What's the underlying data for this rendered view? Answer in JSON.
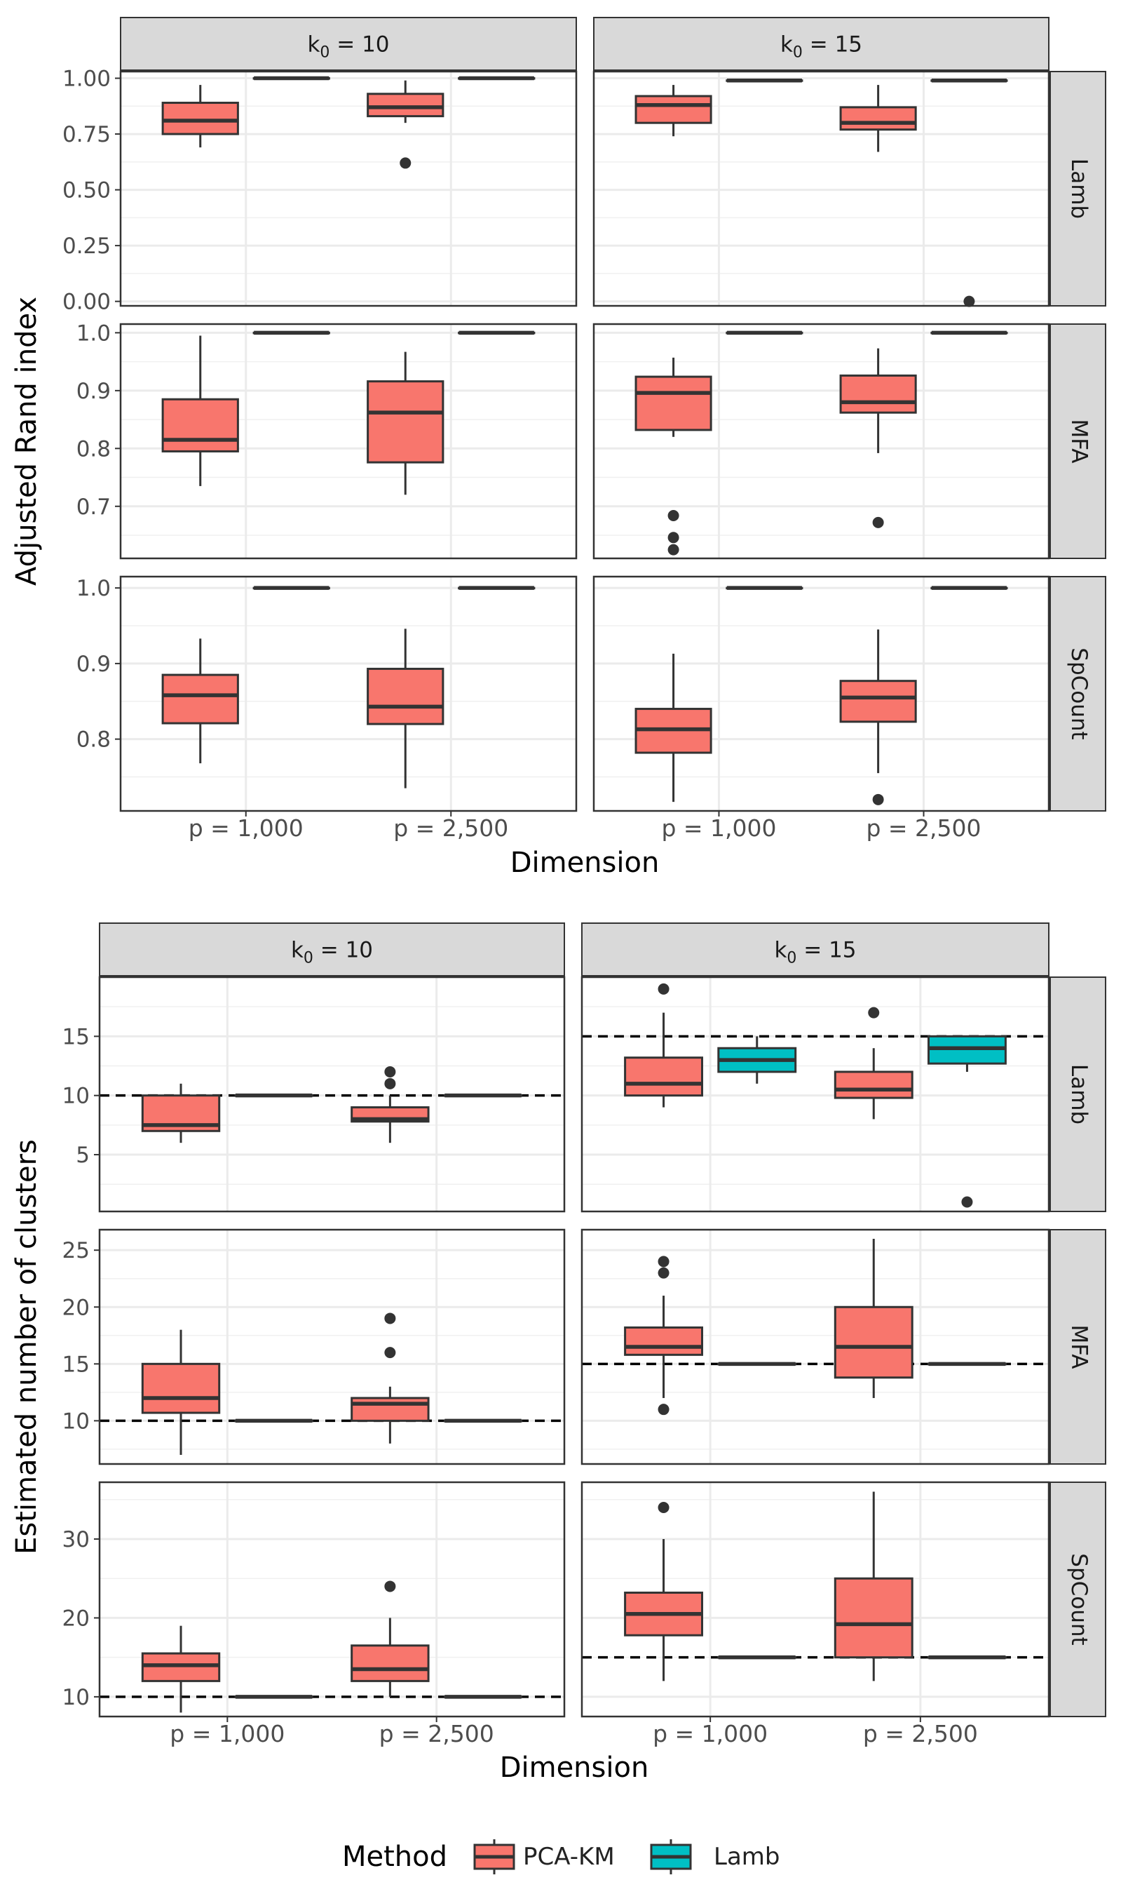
{
  "legend": {
    "title": "Method",
    "items": [
      {
        "label": "PCA-KM",
        "color": "#F8766D"
      },
      {
        "label": "Lamb",
        "color": "#00BFC4"
      }
    ]
  },
  "colors": {
    "PCA-KM": "#F8766D",
    "Lamb": "#00BFC4",
    "strip": "#D9D9D9",
    "box_line": "#333333"
  },
  "chart_data": [
    {
      "type": "boxplot",
      "title": "",
      "ylabel": "Adjusted Rand index",
      "xlabel": "Dimension",
      "categories": [
        "p = 1,000",
        "p = 2,500"
      ],
      "column_strips": [
        {
          "main": "k",
          "sub": "0",
          "rest": " = 10"
        },
        {
          "main": "k",
          "sub": "0",
          "rest": " = 15"
        }
      ],
      "row_strips": [
        "Lamb",
        "MFA",
        "SpCount"
      ],
      "rows": [
        {
          "name": "Lamb",
          "ylim": [
            -0.02,
            1.03
          ],
          "ticks": [
            0,
            0.25,
            0.5,
            0.75,
            1.0
          ],
          "tick_labels": [
            "0.00",
            "0.25",
            "0.50",
            "0.75",
            "1.00"
          ],
          "panels": [
            [
              {
                "method": "PCA-KM",
                "cat": 0,
                "min": 0.69,
                "q1": 0.75,
                "med": 0.81,
                "q3": 0.89,
                "max": 0.97,
                "outliers": []
              },
              {
                "method": "Lamb",
                "cat": 0,
                "min": 1.0,
                "q1": 1.0,
                "med": 1.0,
                "q3": 1.0,
                "max": 1.0,
                "outliers": []
              },
              {
                "method": "PCA-KM",
                "cat": 1,
                "min": 0.8,
                "q1": 0.83,
                "med": 0.87,
                "q3": 0.93,
                "max": 0.99,
                "outliers": [
                  0.62
                ]
              },
              {
                "method": "Lamb",
                "cat": 1,
                "min": 1.0,
                "q1": 1.0,
                "med": 1.0,
                "q3": 1.0,
                "max": 1.0,
                "outliers": []
              }
            ],
            [
              {
                "method": "PCA-KM",
                "cat": 0,
                "min": 0.74,
                "q1": 0.8,
                "med": 0.88,
                "q3": 0.92,
                "max": 0.97,
                "outliers": []
              },
              {
                "method": "Lamb",
                "cat": 0,
                "min": 0.99,
                "q1": 0.99,
                "med": 0.99,
                "q3": 0.99,
                "max": 0.99,
                "outliers": []
              },
              {
                "method": "PCA-KM",
                "cat": 1,
                "min": 0.67,
                "q1": 0.77,
                "med": 0.8,
                "q3": 0.87,
                "max": 0.97,
                "outliers": []
              },
              {
                "method": "Lamb",
                "cat": 1,
                "min": 0.99,
                "q1": 0.99,
                "med": 0.99,
                "q3": 0.99,
                "max": 0.99,
                "outliers": [
                  0.0
                ]
              }
            ]
          ]
        },
        {
          "name": "MFA",
          "ylim": [
            0.61,
            1.015
          ],
          "ticks": [
            0.7,
            0.8,
            0.9,
            1.0
          ],
          "tick_labels": [
            "0.7",
            "0.8",
            "0.9",
            "1.0"
          ],
          "panels": [
            [
              {
                "method": "PCA-KM",
                "cat": 0,
                "min": 0.735,
                "q1": 0.795,
                "med": 0.815,
                "q3": 0.885,
                "max": 0.995,
                "outliers": []
              },
              {
                "method": "Lamb",
                "cat": 0,
                "min": 1.0,
                "q1": 1.0,
                "med": 1.0,
                "q3": 1.0,
                "max": 1.0,
                "outliers": []
              },
              {
                "method": "PCA-KM",
                "cat": 1,
                "min": 0.72,
                "q1": 0.776,
                "med": 0.862,
                "q3": 0.916,
                "max": 0.967,
                "outliers": []
              },
              {
                "method": "Lamb",
                "cat": 1,
                "min": 1.0,
                "q1": 1.0,
                "med": 1.0,
                "q3": 1.0,
                "max": 1.0,
                "outliers": []
              }
            ],
            [
              {
                "method": "PCA-KM",
                "cat": 0,
                "min": 0.82,
                "q1": 0.832,
                "med": 0.896,
                "q3": 0.924,
                "max": 0.957,
                "outliers": [
                  0.684,
                  0.646,
                  0.625
                ]
              },
              {
                "method": "Lamb",
                "cat": 0,
                "min": 1.0,
                "q1": 1.0,
                "med": 1.0,
                "q3": 1.0,
                "max": 1.0,
                "outliers": []
              },
              {
                "method": "PCA-KM",
                "cat": 1,
                "min": 0.792,
                "q1": 0.862,
                "med": 0.88,
                "q3": 0.926,
                "max": 0.973,
                "outliers": [
                  0.672
                ]
              },
              {
                "method": "Lamb",
                "cat": 1,
                "min": 1.0,
                "q1": 1.0,
                "med": 1.0,
                "q3": 1.0,
                "max": 1.0,
                "outliers": []
              }
            ]
          ]
        },
        {
          "name": "SpCount",
          "ylim": [
            0.705,
            1.015
          ],
          "ticks": [
            0.8,
            0.9,
            1.0
          ],
          "tick_labels": [
            "0.8",
            "0.9",
            "1.0"
          ],
          "panels": [
            [
              {
                "method": "PCA-KM",
                "cat": 0,
                "min": 0.768,
                "q1": 0.821,
                "med": 0.858,
                "q3": 0.885,
                "max": 0.933,
                "outliers": []
              },
              {
                "method": "Lamb",
                "cat": 0,
                "min": 1.0,
                "q1": 1.0,
                "med": 1.0,
                "q3": 1.0,
                "max": 1.0,
                "outliers": []
              },
              {
                "method": "PCA-KM",
                "cat": 1,
                "min": 0.735,
                "q1": 0.82,
                "med": 0.843,
                "q3": 0.893,
                "max": 0.946,
                "outliers": []
              },
              {
                "method": "Lamb",
                "cat": 1,
                "min": 1.0,
                "q1": 1.0,
                "med": 1.0,
                "q3": 1.0,
                "max": 1.0,
                "outliers": []
              }
            ],
            [
              {
                "method": "PCA-KM",
                "cat": 0,
                "min": 0.717,
                "q1": 0.782,
                "med": 0.813,
                "q3": 0.84,
                "max": 0.913,
                "outliers": []
              },
              {
                "method": "Lamb",
                "cat": 0,
                "min": 1.0,
                "q1": 1.0,
                "med": 1.0,
                "q3": 1.0,
                "max": 1.0,
                "outliers": []
              },
              {
                "method": "PCA-KM",
                "cat": 1,
                "min": 0.755,
                "q1": 0.823,
                "med": 0.855,
                "q3": 0.877,
                "max": 0.945,
                "outliers": [
                  0.72
                ]
              },
              {
                "method": "Lamb",
                "cat": 1,
                "min": 1.0,
                "q1": 1.0,
                "med": 1.0,
                "q3": 1.0,
                "max": 1.0,
                "outliers": []
              }
            ]
          ]
        }
      ]
    },
    {
      "type": "boxplot",
      "title": "",
      "ylabel": "Estimated number of clusters",
      "xlabel": "Dimension",
      "categories": [
        "p = 1,000",
        "p = 2,500"
      ],
      "column_strips": [
        {
          "main": "k",
          "sub": "0",
          "rest": " = 10"
        },
        {
          "main": "k",
          "sub": "0",
          "rest": " = 15"
        }
      ],
      "row_strips": [
        "Lamb",
        "MFA",
        "SpCount"
      ],
      "reference_lines": [
        10,
        15
      ],
      "rows": [
        {
          "name": "Lamb",
          "ylim": [
            0.2,
            20
          ],
          "ticks": [
            5,
            10,
            15
          ],
          "tick_labels": [
            "5",
            "10",
            "15"
          ],
          "panels": [
            [
              {
                "method": "PCA-KM",
                "cat": 0,
                "min": 6,
                "q1": 7,
                "med": 7.5,
                "q3": 10,
                "max": 11,
                "outliers": []
              },
              {
                "method": "Lamb",
                "cat": 0,
                "min": 10,
                "q1": 10,
                "med": 10,
                "q3": 10,
                "max": 10,
                "outliers": []
              },
              {
                "method": "PCA-KM",
                "cat": 1,
                "min": 6,
                "q1": 7.8,
                "med": 8,
                "q3": 9,
                "max": 10,
                "outliers": [
                  12,
                  11
                ]
              },
              {
                "method": "Lamb",
                "cat": 1,
                "min": 10,
                "q1": 10,
                "med": 10,
                "q3": 10,
                "max": 10,
                "outliers": []
              }
            ],
            [
              {
                "method": "PCA-KM",
                "cat": 0,
                "min": 9,
                "q1": 10,
                "med": 11,
                "q3": 13.2,
                "max": 17,
                "outliers": [
                  19
                ]
              },
              {
                "method": "Lamb",
                "cat": 0,
                "min": 11,
                "q1": 12,
                "med": 13,
                "q3": 14,
                "max": 15,
                "outliers": []
              },
              {
                "method": "PCA-KM",
                "cat": 1,
                "min": 8,
                "q1": 9.8,
                "med": 10.5,
                "q3": 12,
                "max": 14,
                "outliers": [
                  17
                ]
              },
              {
                "method": "Lamb",
                "cat": 1,
                "min": 12,
                "q1": 12.7,
                "med": 14,
                "q3": 15,
                "max": 15,
                "outliers": [
                  1
                ]
              }
            ]
          ]
        },
        {
          "name": "MFA",
          "ylim": [
            6.2,
            26.8
          ],
          "ticks": [
            10,
            15,
            20,
            25
          ],
          "tick_labels": [
            "10",
            "15",
            "20",
            "25"
          ],
          "panels": [
            [
              {
                "method": "PCA-KM",
                "cat": 0,
                "min": 7,
                "q1": 10.7,
                "med": 12,
                "q3": 15,
                "max": 18,
                "outliers": []
              },
              {
                "method": "Lamb",
                "cat": 0,
                "min": 10,
                "q1": 10,
                "med": 10,
                "q3": 10,
                "max": 10,
                "outliers": []
              },
              {
                "method": "PCA-KM",
                "cat": 1,
                "min": 8,
                "q1": 10,
                "med": 11.5,
                "q3": 12,
                "max": 13,
                "outliers": [
                  19,
                  16
                ]
              },
              {
                "method": "Lamb",
                "cat": 1,
                "min": 10,
                "q1": 10,
                "med": 10,
                "q3": 10,
                "max": 10,
                "outliers": []
              }
            ],
            [
              {
                "method": "PCA-KM",
                "cat": 0,
                "min": 12,
                "q1": 15.8,
                "med": 16.5,
                "q3": 18.2,
                "max": 21,
                "outliers": [
                  24,
                  23,
                  11
                ]
              },
              {
                "method": "Lamb",
                "cat": 0,
                "min": 15,
                "q1": 15,
                "med": 15,
                "q3": 15,
                "max": 15,
                "outliers": []
              },
              {
                "method": "PCA-KM",
                "cat": 1,
                "min": 12,
                "q1": 13.8,
                "med": 16.5,
                "q3": 20,
                "max": 26,
                "outliers": []
              },
              {
                "method": "Lamb",
                "cat": 1,
                "min": 15,
                "q1": 15,
                "med": 15,
                "q3": 15,
                "max": 15,
                "outliers": []
              }
            ]
          ]
        },
        {
          "name": "SpCount",
          "ylim": [
            7.5,
            37.2
          ],
          "ticks": [
            10,
            20,
            30
          ],
          "tick_labels": [
            "10",
            "20",
            "30"
          ],
          "panels": [
            [
              {
                "method": "PCA-KM",
                "cat": 0,
                "min": 8,
                "q1": 12,
                "med": 14,
                "q3": 15.5,
                "max": 19,
                "outliers": []
              },
              {
                "method": "Lamb",
                "cat": 0,
                "min": 10,
                "q1": 10,
                "med": 10,
                "q3": 10,
                "max": 10,
                "outliers": []
              },
              {
                "method": "PCA-KM",
                "cat": 1,
                "min": 10,
                "q1": 12,
                "med": 13.5,
                "q3": 16.5,
                "max": 20,
                "outliers": [
                  24
                ]
              },
              {
                "method": "Lamb",
                "cat": 1,
                "min": 10,
                "q1": 10,
                "med": 10,
                "q3": 10,
                "max": 10,
                "outliers": []
              }
            ],
            [
              {
                "method": "PCA-KM",
                "cat": 0,
                "min": 12,
                "q1": 17.8,
                "med": 20.5,
                "q3": 23.2,
                "max": 30,
                "outliers": [
                  34
                ]
              },
              {
                "method": "Lamb",
                "cat": 0,
                "min": 15,
                "q1": 15,
                "med": 15,
                "q3": 15,
                "max": 15,
                "outliers": []
              },
              {
                "method": "PCA-KM",
                "cat": 1,
                "min": 12,
                "q1": 15,
                "med": 19.2,
                "q3": 25,
                "max": 36,
                "outliers": []
              },
              {
                "method": "Lamb",
                "cat": 1,
                "min": 15,
                "q1": 15,
                "med": 15,
                "q3": 15,
                "max": 15,
                "outliers": []
              }
            ]
          ]
        }
      ]
    }
  ]
}
